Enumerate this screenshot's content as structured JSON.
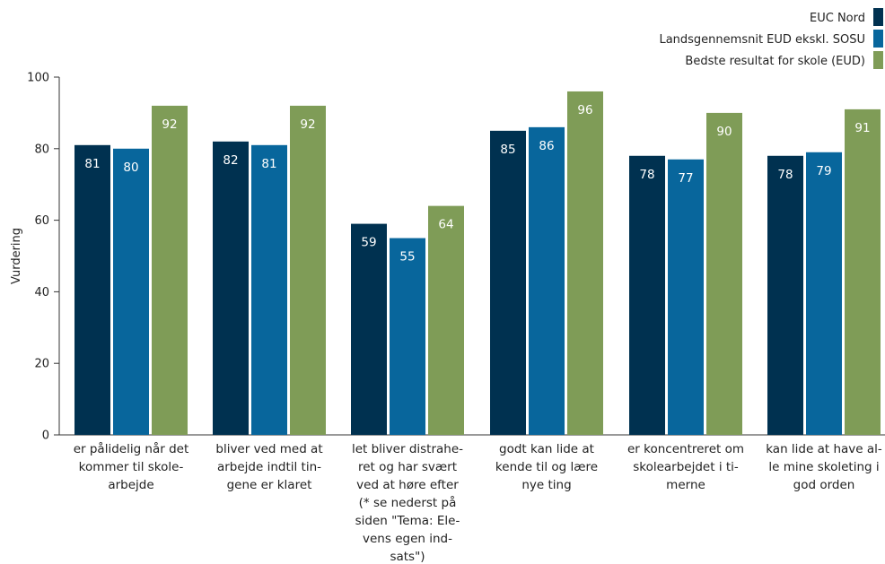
{
  "chart_data": {
    "type": "bar",
    "ylabel": "Vurdering",
    "ylim": [
      0,
      100
    ],
    "yticks": [
      0,
      20,
      40,
      60,
      80,
      100
    ],
    "grid": false,
    "legend_position": "top-right",
    "categories": [
      [
        "er pålidelig når det",
        "kommer til skole-",
        "arbejde"
      ],
      [
        "bliver ved med at",
        "arbejde indtil tin-",
        "gene er klaret"
      ],
      [
        "let bliver distrahe-",
        "ret og har svært",
        "ved at høre efter",
        "(* se nederst på",
        "siden \"Tema: Ele-",
        "vens egen ind-",
        "sats\")"
      ],
      [
        "godt kan lide at",
        "kende til og lære",
        "nye ting"
      ],
      [
        "er koncentreret om",
        "skolearbejdet i ti-",
        "merne"
      ],
      [
        "kan lide at have al-",
        "le mine skoleting i",
        "god orden"
      ]
    ],
    "series": [
      {
        "name": "EUC Nord",
        "color": "#003150",
        "values": [
          81,
          82,
          59,
          85,
          78,
          78
        ]
      },
      {
        "name": "Landsgennemsnit EUD ekskl. SOSU",
        "color": "#08669c",
        "values": [
          80,
          81,
          55,
          86,
          77,
          79
        ]
      },
      {
        "name": "Bedste resultat for skole (EUD)",
        "color": "#7f9c57",
        "values": [
          92,
          92,
          64,
          96,
          90,
          91
        ]
      }
    ]
  }
}
